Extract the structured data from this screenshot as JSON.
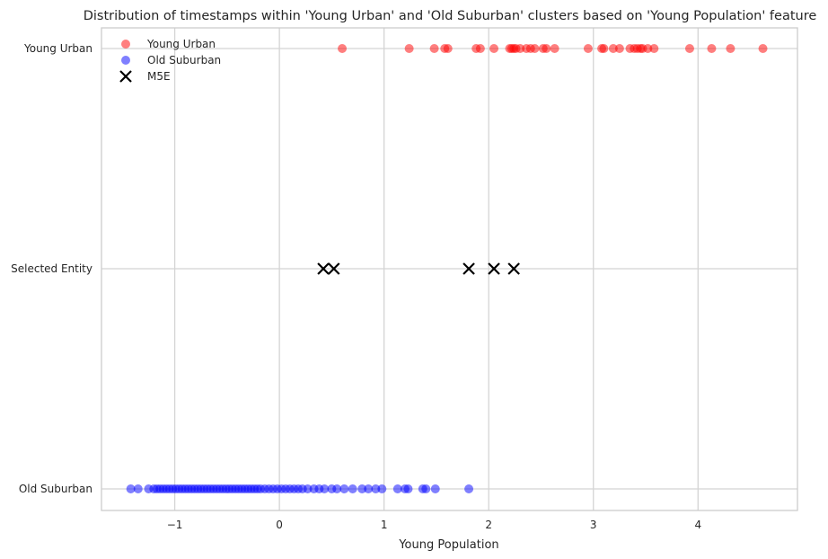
{
  "chart_data": {
    "type": "scatter",
    "title": "Distribution of timestamps within 'Young Urban' and 'Old Suburban' clusters based on 'Young Population' feature",
    "xlabel": "Young Population",
    "ylabel": "",
    "xlim": [
      -1.7,
      4.95
    ],
    "categories": [
      "Old Suburban",
      "Selected Entity",
      "Young Urban"
    ],
    "x_ticks": [
      -1,
      0,
      1,
      2,
      3,
      4
    ],
    "x_tick_labels": [
      "−1",
      "0",
      "1",
      "2",
      "3",
      "4"
    ],
    "grid": true,
    "legend_position": "top-left",
    "series": [
      {
        "name": "Young Urban",
        "marker": "circle",
        "color": "#ff0000",
        "alpha": 0.5,
        "category": "Young Urban",
        "x": [
          0.6,
          1.24,
          1.48,
          1.58,
          1.61,
          1.88,
          1.92,
          2.05,
          2.2,
          2.22,
          2.24,
          2.26,
          2.3,
          2.36,
          2.4,
          2.44,
          2.52,
          2.55,
          2.63,
          2.95,
          3.08,
          3.1,
          3.19,
          3.25,
          3.35,
          3.39,
          3.42,
          3.45,
          3.47,
          3.52,
          3.58,
          3.92,
          4.13,
          4.31,
          4.62
        ]
      },
      {
        "name": "Old Suburban",
        "marker": "circle",
        "color": "#0000ff",
        "alpha": 0.5,
        "category": "Old Suburban",
        "x": [
          -1.42,
          -1.35,
          -1.25,
          -1.2,
          -1.17,
          -1.14,
          -1.11,
          -1.08,
          -1.05,
          -1.02,
          -0.99,
          -0.96,
          -0.93,
          -0.9,
          -0.87,
          -0.84,
          -0.81,
          -0.78,
          -0.75,
          -0.72,
          -0.69,
          -0.66,
          -0.63,
          -0.6,
          -0.57,
          -0.54,
          -0.51,
          -0.48,
          -0.45,
          -0.42,
          -0.39,
          -0.36,
          -0.33,
          -0.3,
          -0.27,
          -0.24,
          -0.21,
          -0.18,
          -0.14,
          -0.1,
          -0.06,
          -0.02,
          0.02,
          0.06,
          0.1,
          0.14,
          0.18,
          0.22,
          0.27,
          0.33,
          0.38,
          0.43,
          0.5,
          0.55,
          0.62,
          0.7,
          0.79,
          0.85,
          0.92,
          0.98,
          1.13,
          1.2,
          1.23,
          1.37,
          1.4,
          1.49,
          1.81
        ]
      },
      {
        "name": "M5E",
        "marker": "x",
        "color": "#000000",
        "alpha": 1,
        "category": "Selected Entity",
        "x": [
          0.42,
          0.52,
          1.81,
          2.05,
          2.24
        ]
      }
    ]
  }
}
